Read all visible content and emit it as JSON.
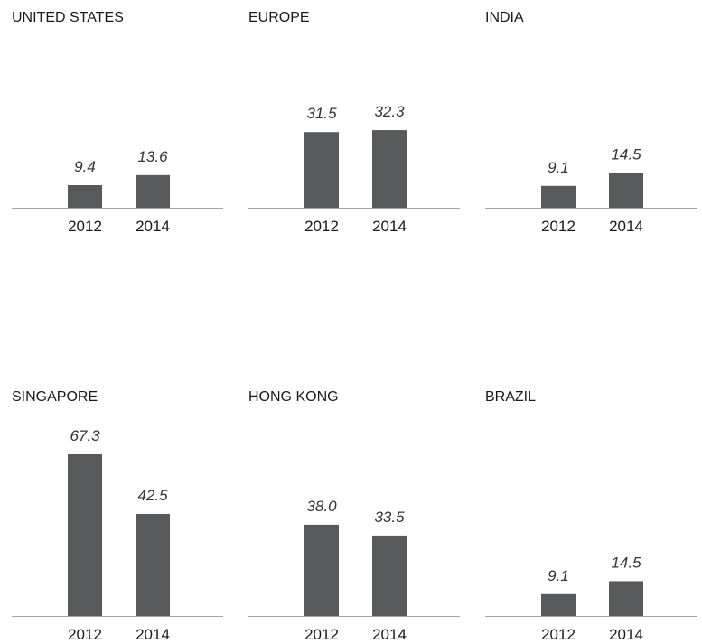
{
  "colors": {
    "bar": "#58595b",
    "baseline": "#a6a6a6"
  },
  "chart_data": [
    {
      "type": "bar",
      "title": "UNITED STATES",
      "categories": [
        "2012",
        "2014"
      ],
      "values": [
        9.4,
        13.6
      ],
      "ylim": [
        0,
        70
      ]
    },
    {
      "type": "bar",
      "title": "EUROPE",
      "categories": [
        "2012",
        "2014"
      ],
      "values": [
        31.5,
        32.3
      ],
      "ylim": [
        0,
        70
      ]
    },
    {
      "type": "bar",
      "title": "INDIA",
      "categories": [
        "2012",
        "2014"
      ],
      "values": [
        9.1,
        14.5
      ],
      "ylim": [
        0,
        70
      ]
    },
    {
      "type": "bar",
      "title": "SINGAPORE",
      "categories": [
        "2012",
        "2014"
      ],
      "values": [
        67.3,
        42.5
      ],
      "ylim": [
        0,
        70
      ]
    },
    {
      "type": "bar",
      "title": "HONG KONG",
      "categories": [
        "2012",
        "2014"
      ],
      "values": [
        38.0,
        33.5
      ],
      "ylim": [
        0,
        70
      ]
    },
    {
      "type": "bar",
      "title": "BRAZIL",
      "categories": [
        "2012",
        "2014"
      ],
      "values": [
        9.1,
        14.5
      ],
      "ylim": [
        0,
        70
      ]
    }
  ]
}
